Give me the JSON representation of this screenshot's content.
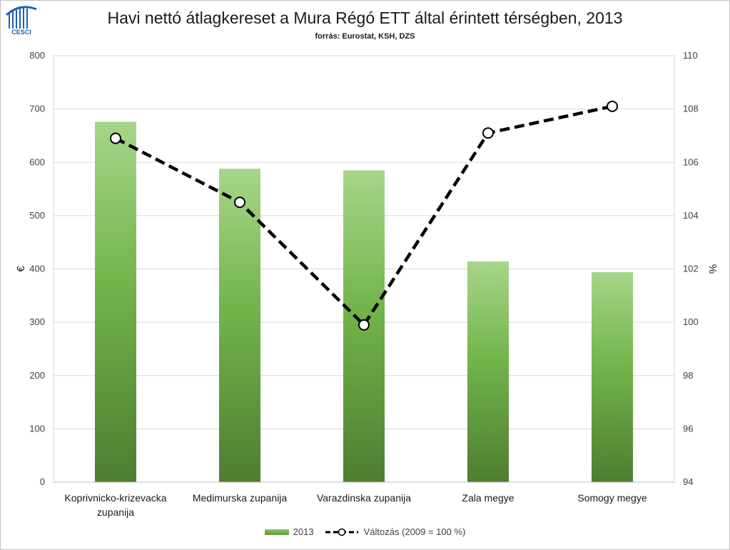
{
  "header": {
    "title": "Havi nettó átlagkereset a Mura Régó ETT által érintett térségben, 2013",
    "subtitle": "forrás: Eurostat, KSH, DZS",
    "logo_text": "CESCI"
  },
  "colors": {
    "bar_top": "#a7d58a",
    "bar_mid": "#72b44a",
    "bar_bottom": "#4e7d31",
    "line": "#000000",
    "marker_fill": "#ffffff",
    "grid": "#d9d9d9"
  },
  "chart_data": {
    "type": "bar",
    "title": "Havi nettó átlagkereset a Mura Régó ETT által érintett térségben, 2013",
    "subtitle": "forrás: Eurostat, KSH, DZS",
    "categories": [
      [
        "Koprivnicko-krizevacka",
        "zupanija"
      ],
      [
        "Medimurska zupanija"
      ],
      [
        "Varazdinska zupanija"
      ],
      [
        "Zala megye"
      ],
      [
        "Somogy megye"
      ]
    ],
    "ylabel_left": "€",
    "ylabel_right": "%",
    "ylim_left": [
      0,
      800
    ],
    "yticks_left": [
      0,
      100,
      200,
      300,
      400,
      500,
      600,
      700,
      800
    ],
    "ylim_right": [
      94,
      110
    ],
    "yticks_right": [
      94,
      96,
      98,
      100,
      102,
      104,
      106,
      108,
      110
    ],
    "grid": true,
    "legend_position": "bottom",
    "series": [
      {
        "name": "2013",
        "type": "bar",
        "axis": "left",
        "values": [
          676,
          588,
          585,
          414,
          394
        ]
      },
      {
        "name": "Változás (2009 = 100 %)",
        "type": "line",
        "axis": "right",
        "style": "dashed",
        "values": [
          106.9,
          104.5,
          99.9,
          107.1,
          108.1
        ]
      }
    ]
  }
}
